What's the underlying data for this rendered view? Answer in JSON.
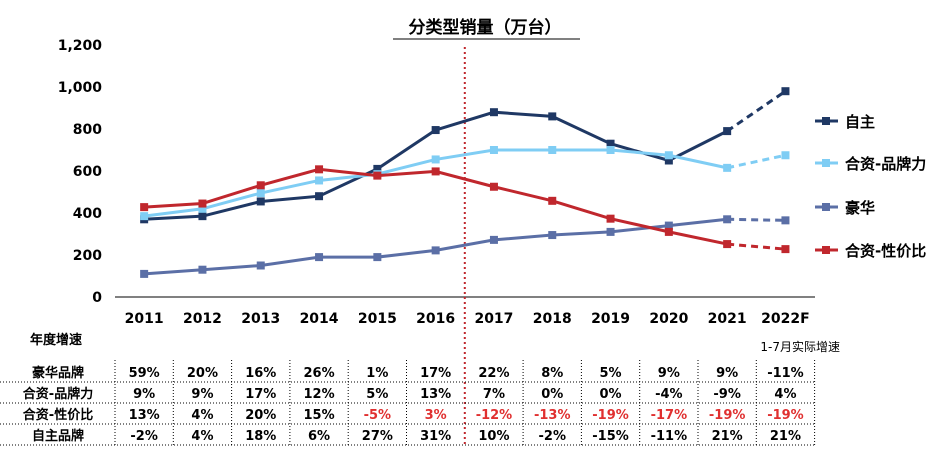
{
  "chart_data": {
    "type": "line",
    "title": "分类型销量（万台）",
    "categories": [
      "2011",
      "2012",
      "2013",
      "2014",
      "2015",
      "2016",
      "2017",
      "2018",
      "2019",
      "2020",
      "2021",
      "2022F"
    ],
    "y_ticks": [
      "1,200",
      "1,000",
      "800",
      "600",
      "400",
      "200",
      "0"
    ],
    "ylim": [
      0,
      1200
    ],
    "grid": false,
    "legend_position": "right",
    "forecast_from": "2021",
    "divider_after": "2016",
    "series": [
      {
        "name": "自主",
        "color": "#1f3864",
        "values": [
          370,
          385,
          455,
          480,
          610,
          795,
          880,
          860,
          730,
          650,
          790,
          980
        ]
      },
      {
        "name": "合资-品牌力",
        "color": "#7fcdf4",
        "values": [
          385,
          420,
          495,
          555,
          585,
          655,
          700,
          700,
          700,
          675,
          615,
          675
        ]
      },
      {
        "name": "豪华",
        "color": "#5b6fa6",
        "values": [
          110,
          130,
          150,
          190,
          190,
          222,
          272,
          295,
          310,
          340,
          370,
          365
        ]
      },
      {
        "name": "合资-性价比",
        "color": "#c0272d",
        "values": [
          428,
          445,
          532,
          608,
          578,
          598,
          525,
          458,
          373,
          310,
          252,
          228
        ]
      }
    ]
  },
  "table": {
    "header": "年度增速",
    "note": "1-7月实际增速",
    "rows": [
      {
        "label": "豪华品牌",
        "values": [
          "59%",
          "20%",
          "16%",
          "26%",
          "1%",
          "17%",
          "22%",
          "8%",
          "5%",
          "9%",
          "9%",
          "-11%"
        ],
        "neg": []
      },
      {
        "label": "合资-品牌力",
        "values": [
          "9%",
          "9%",
          "17%",
          "12%",
          "5%",
          "13%",
          "7%",
          "0%",
          "0%",
          "-4%",
          "-9%",
          "4%"
        ],
        "neg": []
      },
      {
        "label": "合资-性价比",
        "values": [
          "13%",
          "4%",
          "20%",
          "15%",
          "-5%",
          "3%",
          "-12%",
          "-13%",
          "-19%",
          "-17%",
          "-19%",
          "-19%"
        ],
        "neg": [
          4,
          5,
          6,
          7,
          8,
          9,
          10,
          11
        ]
      },
      {
        "label": "自主品牌",
        "values": [
          "-2%",
          "4%",
          "18%",
          "6%",
          "27%",
          "31%",
          "10%",
          "-2%",
          "-15%",
          "-11%",
          "21%",
          "21%"
        ],
        "neg": []
      }
    ]
  }
}
